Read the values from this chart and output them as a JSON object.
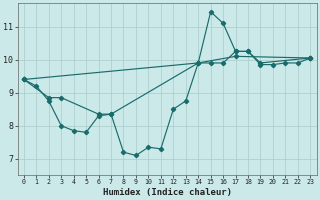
{
  "xlabel": "Humidex (Indice chaleur)",
  "background_color": "#cce9e9",
  "grid_color": "#aacccc",
  "line_color": "#1a6b6b",
  "xlim": [
    -0.5,
    23.5
  ],
  "ylim": [
    6.5,
    11.7
  ],
  "yticks": [
    7,
    8,
    9,
    10,
    11
  ],
  "xticks": [
    0,
    1,
    2,
    3,
    4,
    5,
    6,
    7,
    8,
    9,
    10,
    11,
    12,
    13,
    14,
    15,
    16,
    17,
    18,
    19,
    20,
    21,
    22,
    23
  ],
  "series1": [
    [
      0,
      9.4
    ],
    [
      1,
      9.2
    ],
    [
      2,
      8.75
    ],
    [
      3,
      8.0
    ],
    [
      4,
      7.85
    ],
    [
      5,
      7.8
    ],
    [
      6,
      8.3
    ],
    [
      7,
      8.35
    ],
    [
      8,
      7.2
    ],
    [
      9,
      7.1
    ],
    [
      10,
      7.35
    ],
    [
      11,
      7.3
    ],
    [
      12,
      8.5
    ],
    [
      13,
      8.75
    ],
    [
      14,
      9.9
    ],
    [
      15,
      11.45
    ],
    [
      16,
      11.1
    ],
    [
      17,
      10.25
    ],
    [
      18,
      10.25
    ],
    [
      19,
      9.85
    ],
    [
      20,
      9.85
    ],
    [
      21,
      9.9
    ],
    [
      22,
      9.9
    ],
    [
      23,
      10.05
    ]
  ],
  "series2": [
    [
      0,
      9.4
    ],
    [
      2,
      8.85
    ],
    [
      3,
      8.85
    ],
    [
      6,
      8.35
    ],
    [
      7,
      8.35
    ],
    [
      14,
      9.9
    ],
    [
      15,
      9.9
    ],
    [
      16,
      9.9
    ],
    [
      17,
      10.25
    ],
    [
      18,
      10.25
    ],
    [
      19,
      9.9
    ],
    [
      23,
      10.05
    ]
  ],
  "series3": [
    [
      0,
      9.4
    ],
    [
      14,
      9.9
    ],
    [
      17,
      10.1
    ],
    [
      23,
      10.05
    ]
  ]
}
